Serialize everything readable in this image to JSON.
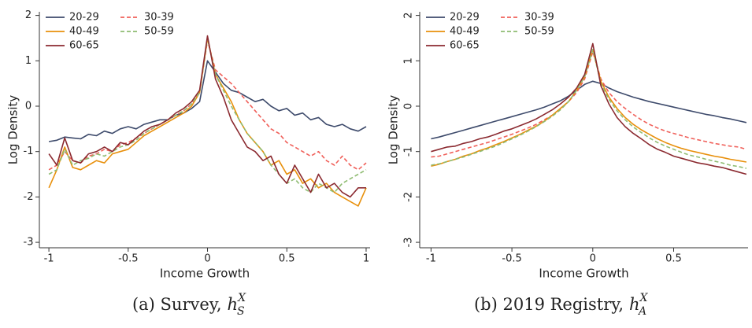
{
  "chart_data": [
    {
      "type": "line",
      "xlabel": "Income Growth",
      "ylabel": "Log Density",
      "caption": "(a) Survey,",
      "caption_symbol": "h",
      "caption_sup": "X",
      "caption_sub": "S",
      "xlim": [
        -1.06,
        1.025
      ],
      "ylim": [
        -3.12,
        2.08
      ],
      "xticks": [
        -1,
        -0.5,
        0,
        0.5,
        1
      ],
      "yticks": [
        -3,
        -2,
        -1,
        0,
        1,
        2
      ],
      "ytick_rotation": 0,
      "legend": "upper left",
      "grid": false,
      "x": [
        -1,
        -0.95,
        -0.9,
        -0.85,
        -0.8,
        -0.75,
        -0.7,
        -0.65,
        -0.6,
        -0.55,
        -0.5,
        -0.45,
        -0.4,
        -0.35,
        -0.3,
        -0.25,
        -0.2,
        -0.15,
        -0.1,
        -0.05,
        0,
        0.05,
        0.1,
        0.15,
        0.2,
        0.25,
        0.3,
        0.35,
        0.4,
        0.45,
        0.5,
        0.55,
        0.6,
        0.65,
        0.7,
        0.75,
        0.8,
        0.85,
        0.9,
        0.95,
        1
      ],
      "series": [
        {
          "name": "20-29",
          "color": "#3d4a6b",
          "dash": false,
          "values": [
            -0.78,
            -0.75,
            -0.68,
            -0.7,
            -0.72,
            -0.62,
            -0.65,
            -0.55,
            -0.6,
            -0.5,
            -0.45,
            -0.5,
            -0.4,
            -0.35,
            -0.3,
            -0.3,
            -0.2,
            -0.15,
            -0.05,
            0.1,
            1.0,
            0.75,
            0.5,
            0.35,
            0.3,
            0.2,
            0.1,
            0.15,
            0.0,
            -0.1,
            -0.05,
            -0.2,
            -0.15,
            -0.3,
            -0.25,
            -0.4,
            -0.45,
            -0.4,
            -0.5,
            -0.55,
            -0.45
          ]
        },
        {
          "name": "30-39",
          "color": "#f0605a",
          "dash": true,
          "values": [
            -1.4,
            -1.3,
            -1.0,
            -1.2,
            -1.25,
            -1.1,
            -1.05,
            -0.95,
            -1.0,
            -0.85,
            -0.8,
            -0.7,
            -0.6,
            -0.5,
            -0.4,
            -0.3,
            -0.2,
            -0.1,
            0.05,
            0.3,
            1.45,
            0.8,
            0.65,
            0.5,
            0.3,
            0.1,
            -0.1,
            -0.3,
            -0.5,
            -0.6,
            -0.8,
            -0.9,
            -1.0,
            -1.1,
            -1.0,
            -1.2,
            -1.3,
            -1.1,
            -1.3,
            -1.4,
            -1.25
          ]
        },
        {
          "name": "40-49",
          "color": "#e8900c",
          "dash": false,
          "values": [
            -1.8,
            -1.4,
            -0.9,
            -1.35,
            -1.4,
            -1.3,
            -1.2,
            -1.25,
            -1.05,
            -1.0,
            -0.95,
            -0.8,
            -0.65,
            -0.55,
            -0.45,
            -0.35,
            -0.25,
            -0.15,
            0.0,
            0.3,
            1.5,
            0.7,
            0.4,
            0.1,
            -0.3,
            -0.6,
            -0.8,
            -1.0,
            -1.3,
            -1.2,
            -1.5,
            -1.4,
            -1.7,
            -1.6,
            -1.8,
            -1.7,
            -1.9,
            -2.0,
            -2.1,
            -2.2,
            -1.8
          ]
        },
        {
          "name": "50-59",
          "color": "#8fbc72",
          "dash": true,
          "values": [
            -1.5,
            -1.4,
            -0.95,
            -1.3,
            -1.2,
            -1.15,
            -1.05,
            -1.1,
            -1.0,
            -0.9,
            -0.85,
            -0.75,
            -0.6,
            -0.5,
            -0.4,
            -0.3,
            -0.2,
            -0.1,
            0.05,
            0.3,
            1.5,
            0.7,
            0.35,
            0.0,
            -0.3,
            -0.6,
            -0.8,
            -1.0,
            -1.3,
            -1.5,
            -1.7,
            -1.6,
            -1.8,
            -1.9,
            -1.7,
            -1.8,
            -1.9,
            -1.7,
            -1.6,
            -1.5,
            -1.4
          ]
        },
        {
          "name": "60-65",
          "color": "#8b2a30",
          "dash": false,
          "values": [
            -1.05,
            -1.3,
            -0.7,
            -1.2,
            -1.25,
            -1.05,
            -1.0,
            -0.9,
            -1.0,
            -0.8,
            -0.85,
            -0.7,
            -0.55,
            -0.45,
            -0.4,
            -0.3,
            -0.15,
            -0.05,
            0.1,
            0.35,
            1.55,
            0.6,
            0.2,
            -0.3,
            -0.6,
            -0.9,
            -1.0,
            -1.2,
            -1.1,
            -1.5,
            -1.7,
            -1.3,
            -1.6,
            -1.9,
            -1.5,
            -1.8,
            -1.7,
            -1.9,
            -2.0,
            -1.8,
            -1.8
          ]
        }
      ]
    },
    {
      "type": "line",
      "xlabel": "Income Growth",
      "ylabel": "Log Density",
      "caption": "(b) 2019 Registry,",
      "caption_symbol": "h",
      "caption_sup": "X",
      "caption_sub": "A",
      "xlim": [
        -1.07,
        0.96
      ],
      "ylim": [
        -3.12,
        2.08
      ],
      "xticks": [
        -1,
        -0.5,
        0,
        0.5
      ],
      "yticks": [
        -3,
        -2,
        -1,
        0,
        1,
        2
      ],
      "ytick_rotation": -90,
      "legend": "upper left",
      "grid": false,
      "x": [
        -1,
        -0.95,
        -0.9,
        -0.85,
        -0.8,
        -0.75,
        -0.7,
        -0.65,
        -0.6,
        -0.55,
        -0.5,
        -0.45,
        -0.4,
        -0.35,
        -0.3,
        -0.25,
        -0.2,
        -0.15,
        -0.1,
        -0.05,
        0,
        0.05,
        0.1,
        0.15,
        0.2,
        0.25,
        0.3,
        0.35,
        0.4,
        0.45,
        0.5,
        0.55,
        0.6,
        0.65,
        0.7,
        0.75,
        0.8,
        0.85,
        0.9,
        0.95
      ],
      "series": [
        {
          "name": "20-29",
          "color": "#3d4a6b",
          "dash": false,
          "values": [
            -0.72,
            -0.68,
            -0.63,
            -0.58,
            -0.53,
            -0.48,
            -0.43,
            -0.38,
            -0.33,
            -0.28,
            -0.23,
            -0.18,
            -0.13,
            -0.08,
            -0.02,
            0.05,
            0.12,
            0.22,
            0.35,
            0.48,
            0.55,
            0.5,
            0.4,
            0.32,
            0.26,
            0.2,
            0.15,
            0.1,
            0.06,
            0.02,
            -0.02,
            -0.06,
            -0.1,
            -0.14,
            -0.18,
            -0.21,
            -0.25,
            -0.28,
            -0.32,
            -0.36
          ]
        },
        {
          "name": "30-39",
          "color": "#f0605a",
          "dash": true,
          "values": [
            -1.12,
            -1.1,
            -1.05,
            -1.0,
            -0.95,
            -0.9,
            -0.85,
            -0.8,
            -0.74,
            -0.68,
            -0.62,
            -0.55,
            -0.48,
            -0.4,
            -0.3,
            -0.2,
            -0.05,
            0.1,
            0.3,
            0.6,
            1.2,
            0.6,
            0.3,
            0.1,
            -0.05,
            -0.18,
            -0.3,
            -0.4,
            -0.48,
            -0.55,
            -0.6,
            -0.65,
            -0.7,
            -0.74,
            -0.78,
            -0.82,
            -0.85,
            -0.88,
            -0.9,
            -0.95
          ]
        },
        {
          "name": "40-49",
          "color": "#e8900c",
          "dash": false,
          "values": [
            -1.32,
            -1.28,
            -1.22,
            -1.17,
            -1.1,
            -1.05,
            -0.98,
            -0.92,
            -0.85,
            -0.78,
            -0.7,
            -0.62,
            -0.53,
            -0.44,
            -0.33,
            -0.2,
            -0.05,
            0.1,
            0.35,
            0.65,
            1.25,
            0.55,
            0.2,
            -0.05,
            -0.25,
            -0.4,
            -0.52,
            -0.62,
            -0.72,
            -0.8,
            -0.87,
            -0.93,
            -0.98,
            -1.02,
            -1.06,
            -1.1,
            -1.13,
            -1.17,
            -1.2,
            -1.23
          ]
        },
        {
          "name": "50-59",
          "color": "#8fbc72",
          "dash": true,
          "values": [
            -1.3,
            -1.27,
            -1.22,
            -1.17,
            -1.12,
            -1.06,
            -1.0,
            -0.94,
            -0.88,
            -0.8,
            -0.72,
            -0.64,
            -0.55,
            -0.45,
            -0.34,
            -0.22,
            -0.08,
            0.1,
            0.35,
            0.65,
            1.25,
            0.5,
            0.15,
            -0.1,
            -0.3,
            -0.46,
            -0.58,
            -0.7,
            -0.8,
            -0.88,
            -0.95,
            -1.02,
            -1.08,
            -1.12,
            -1.17,
            -1.21,
            -1.25,
            -1.3,
            -1.33,
            -1.37
          ]
        },
        {
          "name": "60-65",
          "color": "#8b2a30",
          "dash": false,
          "values": [
            -1.0,
            -0.95,
            -0.9,
            -0.88,
            -0.82,
            -0.78,
            -0.72,
            -0.68,
            -0.62,
            -0.55,
            -0.5,
            -0.43,
            -0.36,
            -0.28,
            -0.18,
            -0.08,
            0.05,
            0.2,
            0.4,
            0.7,
            1.38,
            0.45,
            0.05,
            -0.25,
            -0.45,
            -0.6,
            -0.72,
            -0.85,
            -0.95,
            -1.02,
            -1.1,
            -1.15,
            -1.2,
            -1.25,
            -1.28,
            -1.32,
            -1.35,
            -1.4,
            -1.45,
            -1.5
          ]
        }
      ]
    }
  ]
}
